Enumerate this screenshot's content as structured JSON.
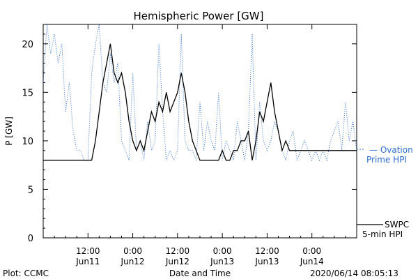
{
  "chart_data": {
    "type": "line",
    "title": "Hemispheric Power [GW]",
    "xlabel": "Date and Time",
    "ylabel": "P [GW]",
    "ylim": [
      0,
      22
    ],
    "y_ticks": [
      0,
      5,
      10,
      15,
      20
    ],
    "x_ticks": [
      {
        "time": "12:00",
        "date": "Jun11"
      },
      {
        "time": "0:00",
        "date": "Jun12"
      },
      {
        "time": "12:00",
        "date": "Jun12"
      },
      {
        "time": "0:00",
        "date": "Jun13"
      },
      {
        "time": "12:00",
        "date": "Jun13"
      },
      {
        "time": "0:00",
        "date": "Jun14"
      }
    ],
    "legend": [
      {
        "label_lines": [
          "— Ovation",
          "Prime HPI"
        ],
        "color": "#2f6fd0",
        "placement": "right-middle"
      },
      {
        "label_lines": [
          "SWPC",
          "5-min HPI"
        ],
        "color": "#000000",
        "placement": "right-bottom"
      }
    ],
    "footer": {
      "left": "Plot: CCMC",
      "right": "2020/06/14 08:05:13"
    },
    "series": [
      {
        "color": "#000000",
        "style": "solid",
        "x_hours": [
          0,
          13,
          14,
          15,
          16,
          17,
          18,
          19,
          20,
          21,
          22,
          23,
          24,
          25,
          26,
          27,
          28,
          29,
          30,
          31,
          32,
          33,
          34,
          35,
          36,
          37,
          38,
          39,
          40,
          41,
          42,
          43,
          44,
          45,
          46,
          47,
          48,
          49,
          50,
          51,
          52,
          53,
          54,
          55,
          56,
          57,
          58,
          59,
          60,
          61,
          62,
          63,
          64,
          65,
          66,
          67,
          68,
          69,
          70,
          71,
          72,
          73,
          74,
          75,
          76,
          77,
          78,
          79,
          80,
          81,
          82,
          83,
          84
        ],
        "values": [
          8,
          8,
          10,
          13,
          16,
          18,
          20,
          17,
          16,
          17,
          15,
          12,
          10,
          9,
          10,
          9,
          11,
          13,
          12,
          14,
          13,
          15,
          13,
          14,
          15,
          17,
          15,
          12,
          10,
          9,
          8,
          8,
          8,
          8,
          8,
          8,
          9,
          8,
          8,
          9,
          9,
          10,
          10,
          11,
          8,
          10,
          13,
          12,
          14,
          16,
          13,
          11,
          9,
          10,
          9,
          9,
          9,
          9,
          9,
          9,
          9,
          9,
          9,
          9,
          9,
          9,
          9,
          9,
          9,
          9,
          9,
          9,
          9
        ]
      },
      {
        "color": "#2f6fd0",
        "style": "dotted",
        "x_hours": [
          0,
          1,
          2,
          3,
          4,
          5,
          6,
          7,
          8,
          9,
          10,
          11,
          12,
          13,
          14,
          15,
          16,
          17,
          18,
          19,
          20,
          21,
          22,
          23,
          24,
          25,
          26,
          27,
          28,
          29,
          30,
          31,
          32,
          33,
          34,
          35,
          36,
          37,
          38,
          39,
          40,
          41,
          42,
          43,
          44,
          45,
          46,
          47,
          48,
          49,
          50,
          51,
          52,
          53,
          54,
          55,
          56,
          57,
          58,
          59,
          60,
          61,
          62,
          63,
          64,
          65,
          66,
          67,
          68,
          69,
          70,
          71,
          72,
          73,
          74,
          75,
          76,
          77,
          78,
          79,
          80,
          81,
          82,
          83,
          84
        ],
        "values": [
          16,
          22,
          19,
          21,
          18,
          20,
          13,
          16,
          11,
          9,
          9,
          8,
          8,
          17,
          20,
          22,
          16,
          15,
          19,
          16,
          18,
          10,
          9,
          8,
          17,
          9,
          10,
          8,
          12,
          9,
          10,
          20,
          13,
          8,
          9,
          8,
          9,
          21,
          10,
          9,
          9,
          8,
          14,
          9,
          12,
          10,
          9,
          15,
          8,
          10,
          9,
          8,
          12,
          10,
          8,
          11,
          21,
          8,
          14,
          10,
          9,
          10,
          12,
          11,
          9,
          8,
          10,
          11,
          8,
          9,
          10,
          9,
          8,
          9,
          8,
          9,
          8,
          10,
          11,
          12,
          9,
          14,
          10,
          12,
          9
        ]
      }
    ]
  }
}
